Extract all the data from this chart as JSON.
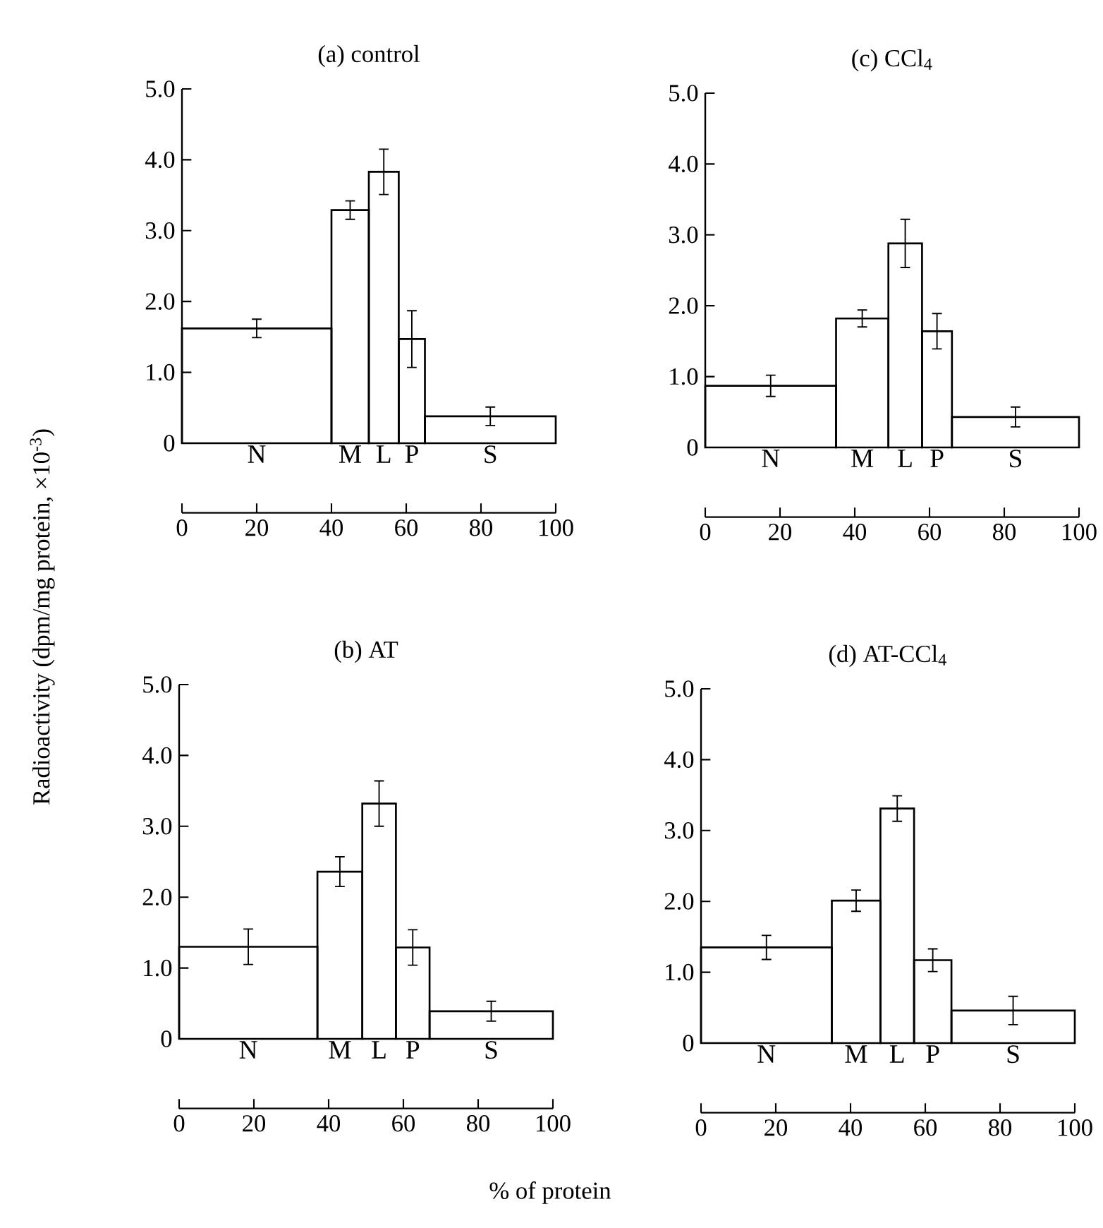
{
  "chart_data": [
    {
      "type": "histogram",
      "title": "(a) control",
      "ylabel": "Radioactivity (dpm/mg protein, ×10$^{-3}$)",
      "xlabel": "% of protein",
      "bins": [
        0,
        40,
        50,
        58,
        65,
        100
      ],
      "values": [
        1.62,
        3.29,
        3.83,
        1.47,
        0.38
      ],
      "errors": [
        0.13,
        0.13,
        0.32,
        0.4,
        0.13
      ],
      "categories": [
        "N",
        "M",
        "L",
        "P",
        "S"
      ],
      "color": "#000000",
      "xlim": [
        0,
        100
      ],
      "xticks": [
        0,
        20,
        40,
        60,
        80,
        100
      ],
      "ylim": [
        0,
        5
      ],
      "yticks": [
        0,
        {
          "value": 1,
          "label": "1.0"
        },
        {
          "value": 2,
          "label": "2.0"
        },
        {
          "value": 3,
          "label": "3.0"
        },
        {
          "value": 4,
          "label": "4.0"
        },
        {
          "value": 5,
          "label": "5.0"
        }
      ]
    },
    {
      "type": "histogram",
      "title": "(c) CCl$_{4}$",
      "bins": [
        0,
        35,
        49,
        58,
        66,
        100
      ],
      "values": [
        0.87,
        1.82,
        2.88,
        1.64,
        0.43
      ],
      "errors": [
        0.15,
        0.12,
        0.34,
        0.25,
        0.14
      ],
      "categories": [
        "N",
        "M",
        "L",
        "P",
        "S"
      ],
      "color": "#000000",
      "xlim": [
        0,
        100
      ],
      "xticks": [
        0,
        20,
        40,
        60,
        80,
        100
      ],
      "ylim": [
        0,
        5
      ],
      "yticks": [
        0,
        {
          "value": 1,
          "label": "1.0"
        },
        {
          "value": 2,
          "label": "2.0"
        },
        {
          "value": 3,
          "label": "3.0"
        },
        {
          "value": 4,
          "label": "4.0"
        },
        {
          "value": 5,
          "label": "5.0"
        }
      ]
    },
    {
      "type": "histogram",
      "title": "(b) AT",
      "bins": [
        0,
        37,
        49,
        58,
        67,
        100
      ],
      "values": [
        1.3,
        2.36,
        3.32,
        1.29,
        0.39
      ],
      "errors": [
        0.25,
        0.21,
        0.32,
        0.25,
        0.14
      ],
      "categories": [
        "N",
        "M",
        "L",
        "P",
        "S"
      ],
      "color": "#000000",
      "xlim": [
        0,
        100
      ],
      "xticks": [
        0,
        20,
        40,
        60,
        80,
        100
      ],
      "ylim": [
        0,
        5
      ],
      "yticks": [
        0,
        {
          "value": 1,
          "label": "1.0"
        },
        {
          "value": 2,
          "label": "2.0"
        },
        {
          "value": 3,
          "label": "3.0"
        },
        {
          "value": 4,
          "label": "4.0"
        },
        {
          "value": 5,
          "label": "5.0"
        }
      ]
    },
    {
      "type": "histogram",
      "title": "(d) AT-CCl$_{4}$",
      "bins": [
        0,
        35,
        48,
        57,
        67,
        100
      ],
      "values": [
        1.35,
        2.01,
        3.31,
        1.17,
        0.46
      ],
      "errors": [
        0.17,
        0.15,
        0.18,
        0.16,
        0.2
      ],
      "categories": [
        "N",
        "M",
        "L",
        "P",
        "S"
      ],
      "color": "#000000",
      "xlim": [
        0,
        100
      ],
      "xticks": [
        0,
        20,
        40,
        60,
        80,
        100
      ],
      "ylim": [
        0,
        5
      ],
      "yticks": [
        0,
        {
          "value": 1,
          "label": "1.0"
        },
        {
          "value": 2,
          "label": "2.0"
        },
        {
          "value": 3,
          "label": "3.0"
        },
        {
          "value": 4,
          "label": "4.0"
        },
        {
          "value": 5,
          "label": "5.0"
        }
      ]
    }
  ]
}
